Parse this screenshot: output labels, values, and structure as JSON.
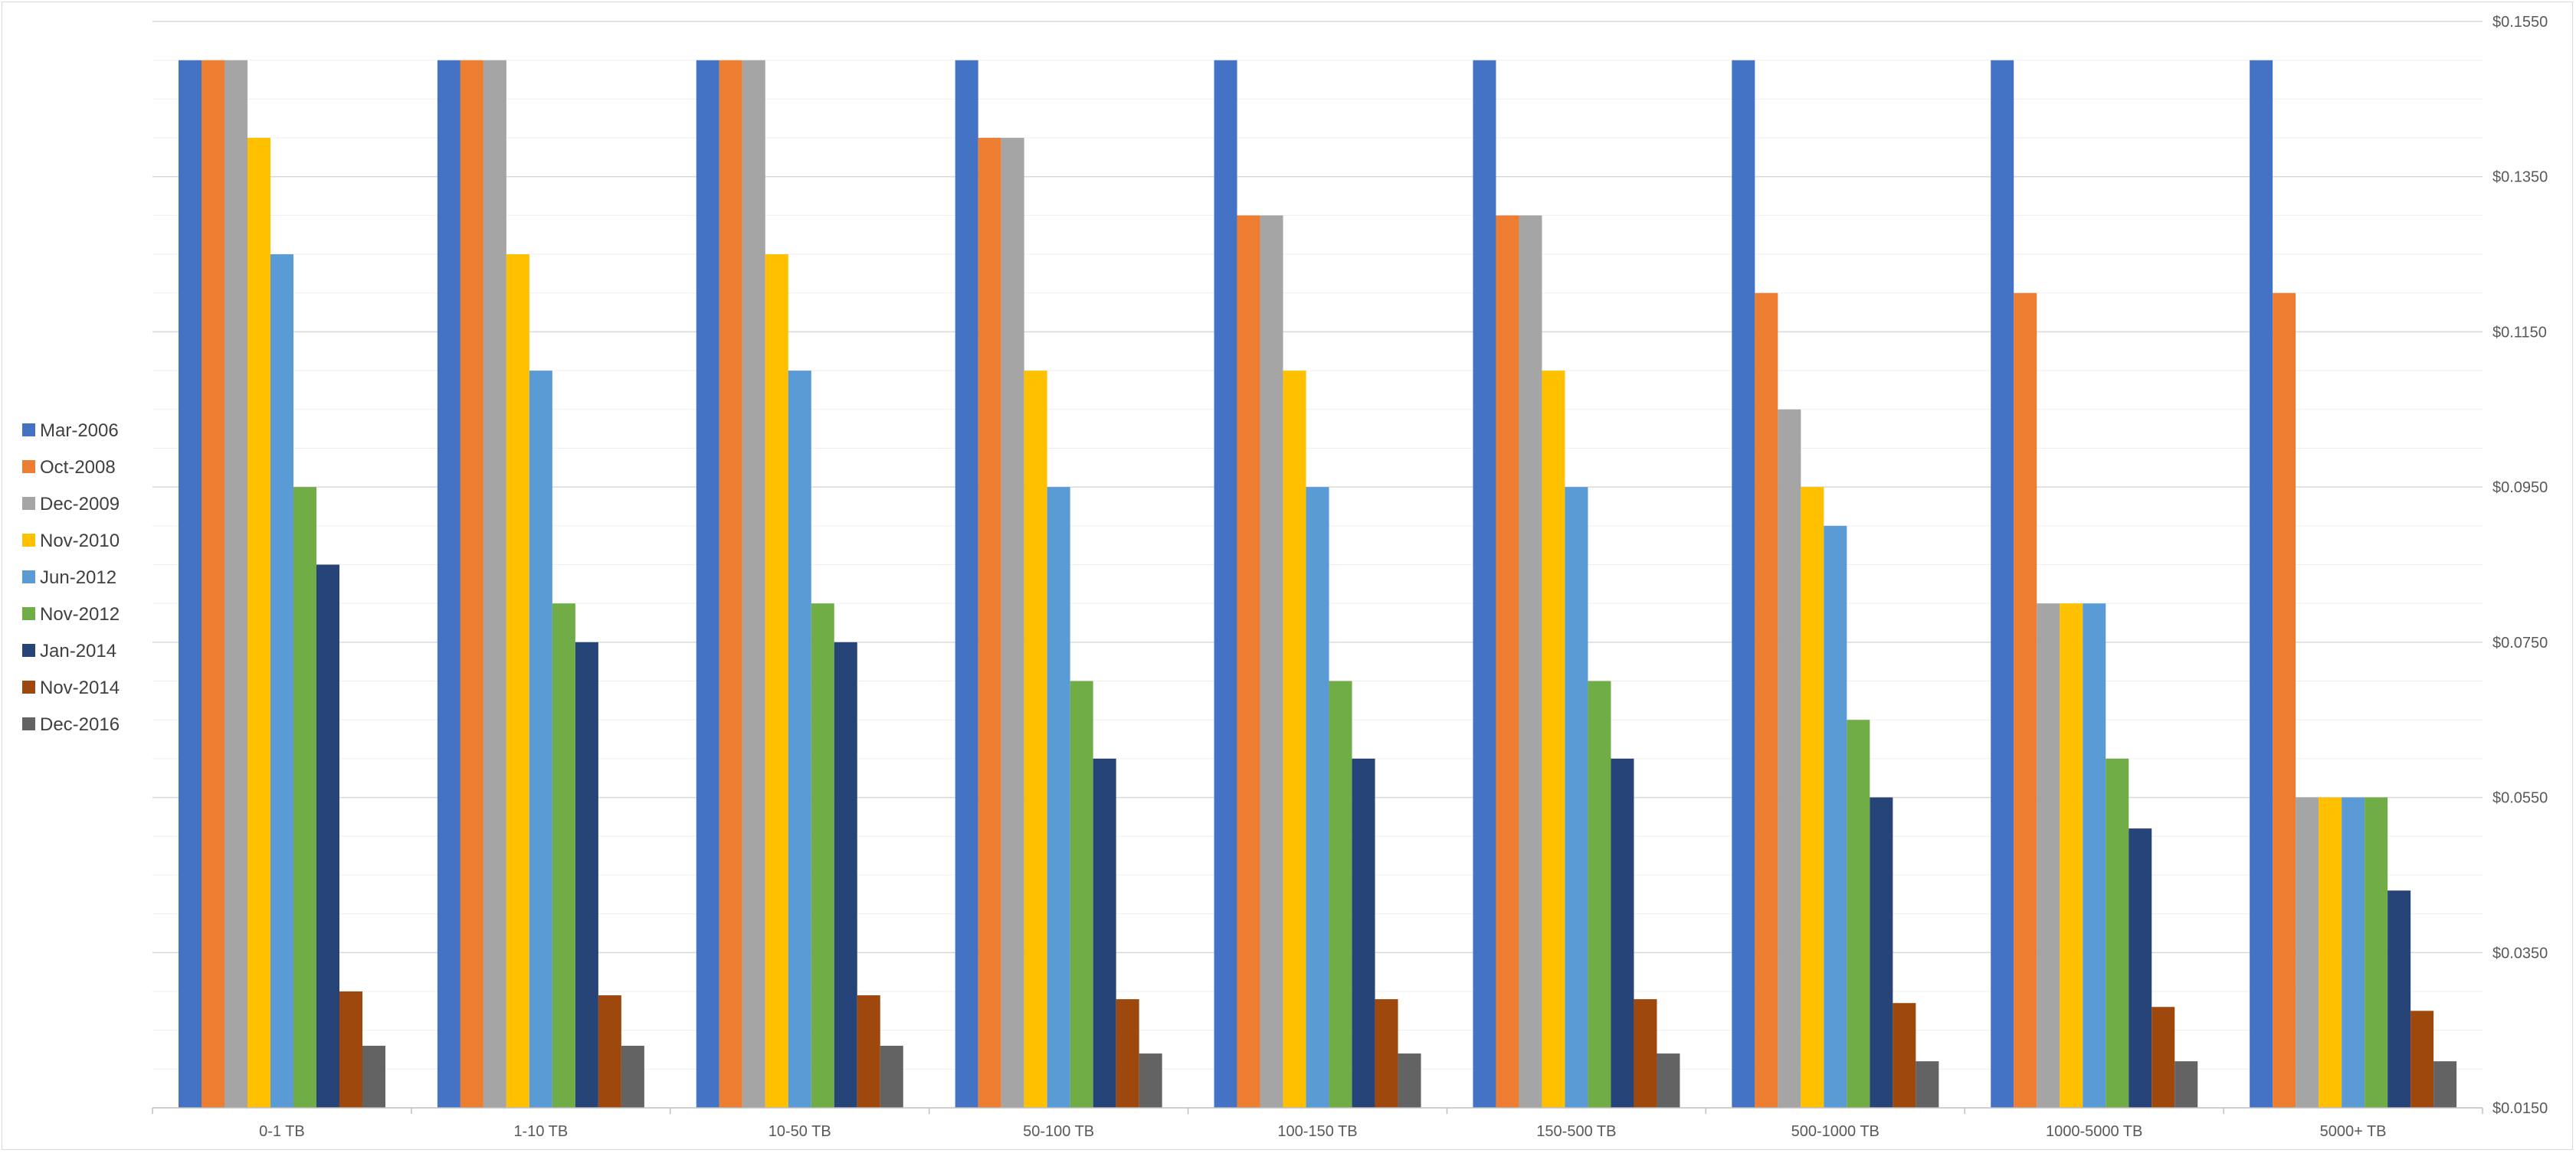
{
  "chart_data": {
    "type": "bar",
    "title": "",
    "xlabel": "",
    "ylabel": "",
    "y_axis_side": "right",
    "ylim": [
      0.015,
      0.155
    ],
    "yticks": [
      "$0.0150",
      "$0.0350",
      "$0.0550",
      "$0.0750",
      "$0.0950",
      "$0.1150",
      "$0.1350",
      "$0.1550"
    ],
    "ytick_values": [
      0.015,
      0.035,
      0.055,
      0.075,
      0.095,
      0.115,
      0.135,
      0.155
    ],
    "grid": true,
    "legend_position": "left",
    "categories": [
      "0-1 TB",
      "1-10 TB",
      "10-50 TB",
      "50-100 TB",
      "100-150 TB",
      "150-500 TB",
      "500-1000 TB",
      "1000-5000 TB",
      "5000+ TB"
    ],
    "series": [
      {
        "name": "Mar-2006",
        "color": "#4472C4",
        "values": [
          0.15,
          0.15,
          0.15,
          0.15,
          0.15,
          0.15,
          0.15,
          0.15,
          0.15
        ]
      },
      {
        "name": "Oct-2008",
        "color": "#ED7D31",
        "values": [
          0.15,
          0.15,
          0.15,
          0.14,
          0.13,
          0.13,
          0.12,
          0.12,
          0.12
        ]
      },
      {
        "name": "Dec-2009",
        "color": "#A5A5A5",
        "values": [
          0.15,
          0.15,
          0.15,
          0.14,
          0.13,
          0.13,
          0.105,
          0.08,
          0.055
        ]
      },
      {
        "name": "Nov-2010",
        "color": "#FFC000",
        "values": [
          0.14,
          0.125,
          0.125,
          0.11,
          0.11,
          0.11,
          0.095,
          0.08,
          0.055
        ]
      },
      {
        "name": "Jun-2012",
        "color": "#5B9BD5",
        "values": [
          0.125,
          0.11,
          0.11,
          0.095,
          0.095,
          0.095,
          0.09,
          0.08,
          0.055
        ]
      },
      {
        "name": "Nov-2012",
        "color": "#70AD47",
        "values": [
          0.095,
          0.08,
          0.08,
          0.07,
          0.07,
          0.07,
          0.065,
          0.06,
          0.055
        ]
      },
      {
        "name": "Jan-2014",
        "color": "#264478",
        "values": [
          0.085,
          0.075,
          0.075,
          0.06,
          0.06,
          0.06,
          0.055,
          0.051,
          0.043
        ]
      },
      {
        "name": "Nov-2014",
        "color": "#9E480E",
        "values": [
          0.03,
          0.0295,
          0.0295,
          0.029,
          0.029,
          0.029,
          0.0285,
          0.028,
          0.0275
        ]
      },
      {
        "name": "Dec-2016",
        "color": "#636363",
        "values": [
          0.023,
          0.023,
          0.023,
          0.022,
          0.022,
          0.022,
          0.021,
          0.021,
          0.021
        ]
      }
    ]
  }
}
